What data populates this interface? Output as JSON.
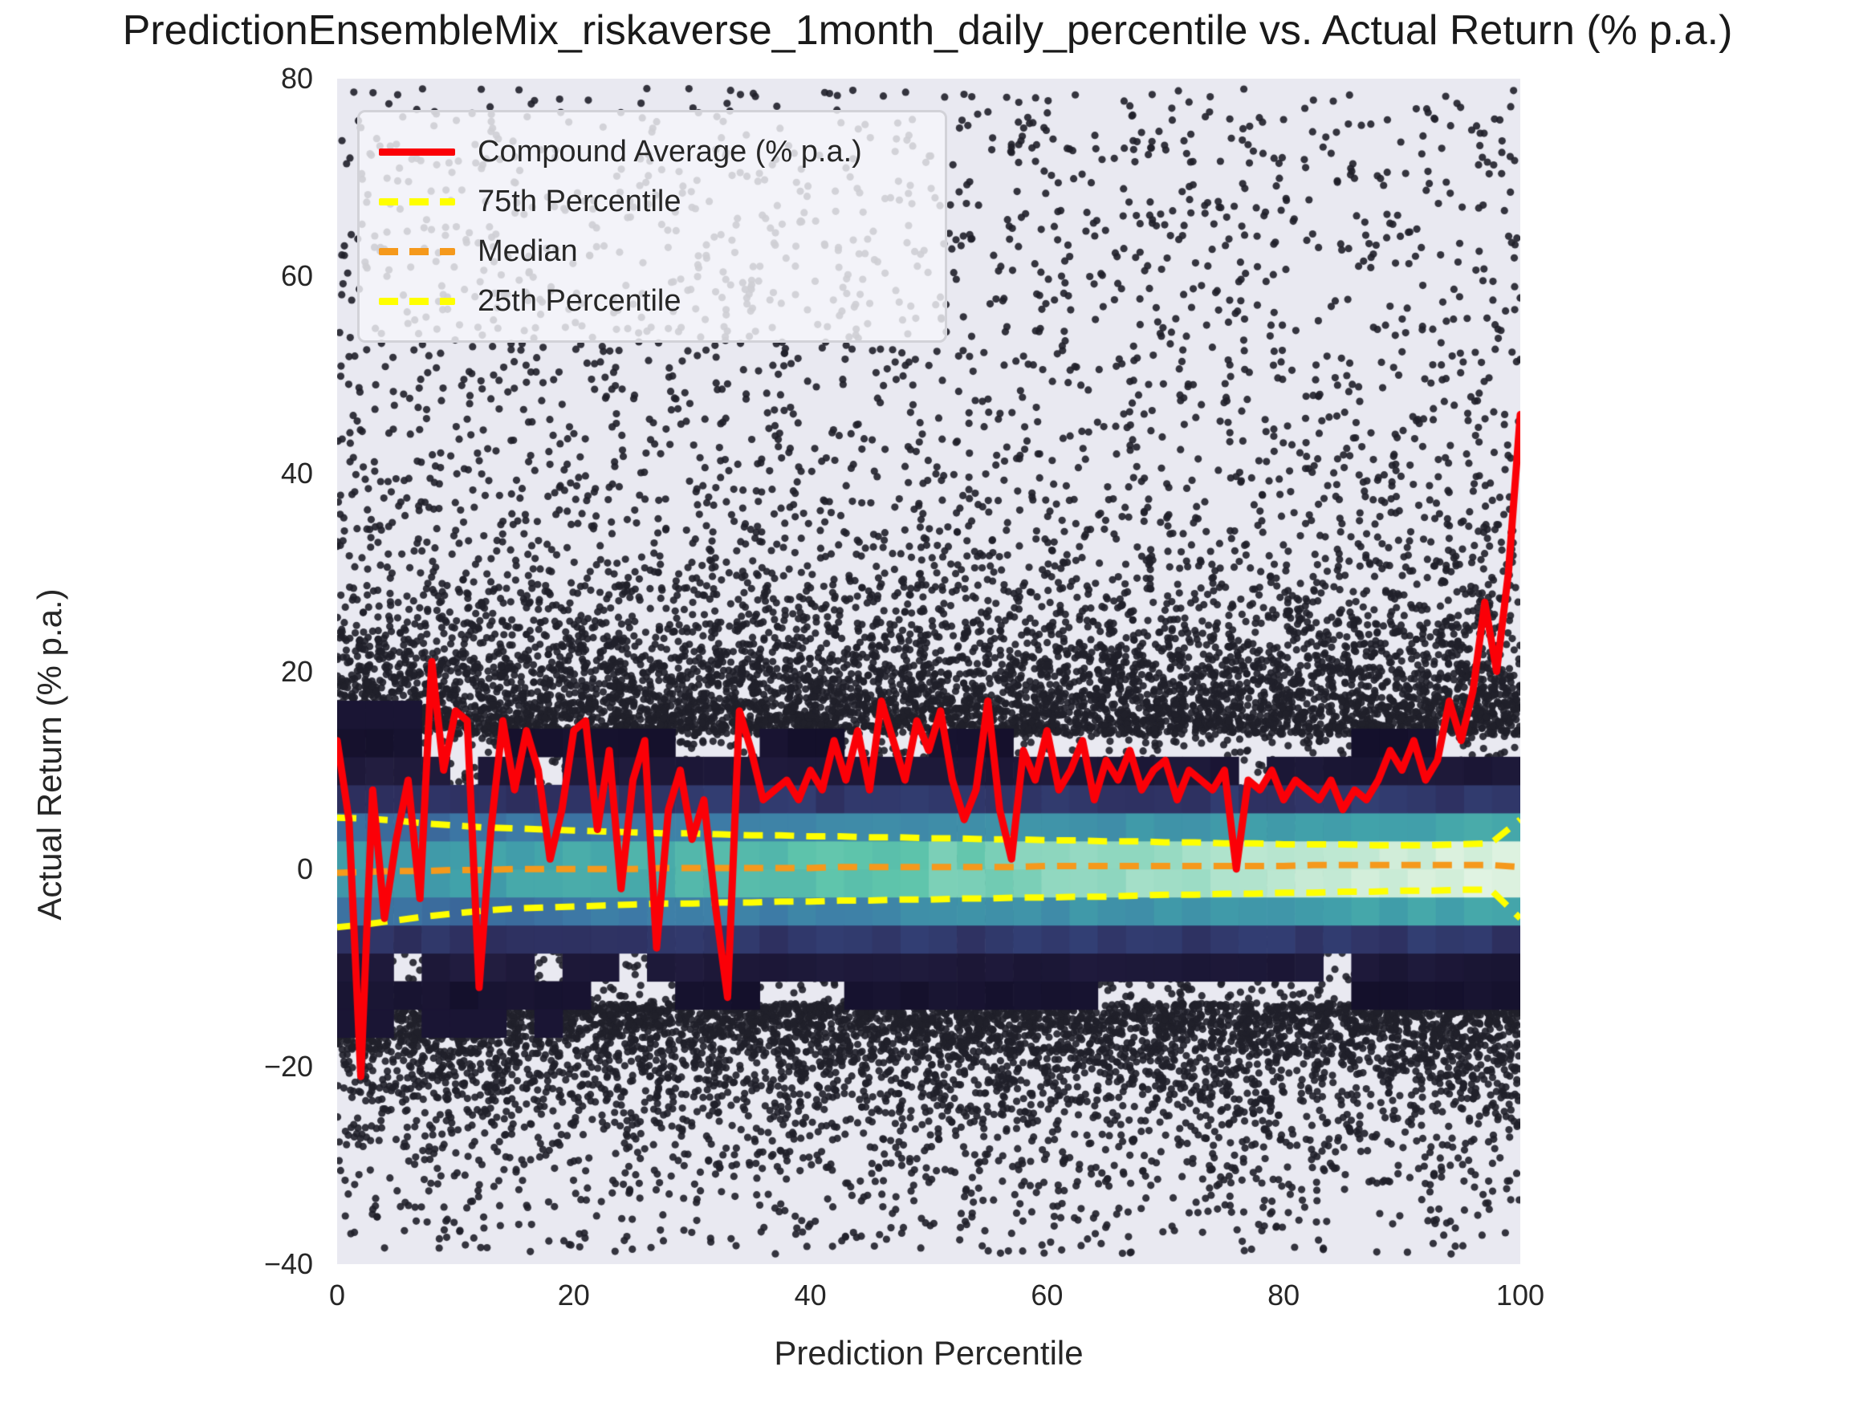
{
  "title": "PredictionEnsembleMix_riskaverse_1month_daily_percentile vs. Actual Return (% p.a.)",
  "axes": {
    "x": {
      "label": "Prediction Percentile",
      "lim": [
        0,
        100
      ],
      "ticks": [
        {
          "value": 0,
          "label": "0"
        },
        {
          "value": 20,
          "label": "20"
        },
        {
          "value": 40,
          "label": "40"
        },
        {
          "value": 60,
          "label": "60"
        },
        {
          "value": 80,
          "label": "80"
        },
        {
          "value": 100,
          "label": "100"
        }
      ]
    },
    "y": {
      "label": "Actual Return (% p.a.)",
      "lim": [
        -40,
        80
      ],
      "ticks": [
        {
          "value": 80,
          "label": "80"
        },
        {
          "value": 60,
          "label": "60"
        },
        {
          "value": 40,
          "label": "40"
        },
        {
          "value": 20,
          "label": "20"
        },
        {
          "value": 0,
          "label": "0"
        },
        {
          "value": -20,
          "label": "−20"
        },
        {
          "value": -40,
          "label": "−40"
        }
      ]
    }
  },
  "legend": {
    "items": [
      {
        "label": "Compound Average (% p.a.)",
        "color": "#fb0007",
        "dashed": false
      },
      {
        "label": "75th Percentile",
        "color": "#ffff00",
        "dashed": true
      },
      {
        "label": "Median",
        "color": "#f5991c",
        "dashed": true
      },
      {
        "label": "25th Percentile",
        "color": "#ffff00",
        "dashed": true
      }
    ]
  },
  "colors": {
    "page_bg": "#ffffff",
    "plot_bg": "#e9e9f1",
    "dot": "#20202a",
    "red_line": "#fb0007",
    "yellow_line": "#ffff00",
    "orange_line": "#f5991c",
    "text": "#262626"
  },
  "chart_data": {
    "type": "composite",
    "subtypes": [
      "scatter",
      "heatmap",
      "line"
    ],
    "title": "PredictionEnsembleMix_riskaverse_1month_daily_percentile vs. Actual Return (% p.a.)",
    "xlabel": "Prediction Percentile",
    "ylabel": "Actual Return (% p.a.)",
    "xlim": [
      0,
      100
    ],
    "ylim": [
      -40,
      80
    ],
    "grid": false,
    "legend_position": "upper left",
    "series": [
      {
        "name": "Compound Average (% p.a.)",
        "type": "line",
        "color": "#fb0007",
        "width": 9,
        "x_start": 0,
        "x_step": 1,
        "values": [
          13,
          5,
          -21,
          8,
          -5,
          3,
          9,
          -3,
          21,
          10,
          16,
          15,
          -12,
          4,
          15,
          8,
          14,
          10,
          1,
          6,
          14,
          15,
          4,
          12,
          -2,
          9,
          13,
          -8,
          6,
          10,
          3,
          7,
          -4,
          -13,
          16,
          12,
          7,
          8,
          9,
          7,
          10,
          8,
          13,
          9,
          14,
          8,
          17,
          13,
          9,
          15,
          12,
          16,
          9,
          5,
          8,
          17,
          6,
          1,
          12,
          9,
          14,
          8,
          10,
          13,
          7,
          11,
          9,
          12,
          8,
          10,
          11,
          7,
          10,
          9,
          8,
          10,
          0,
          9,
          8,
          10,
          7,
          9,
          8,
          7,
          9,
          6,
          8,
          7,
          9,
          12,
          10,
          13,
          9,
          11,
          17,
          13,
          18,
          27,
          20,
          30,
          46
        ]
      },
      {
        "name": "75th Percentile",
        "type": "dashed-line",
        "color": "#ffff00",
        "width": 8,
        "x_start": 0,
        "x_step": 2.5,
        "values": [
          5.2,
          5.1,
          4.9,
          4.6,
          4.4,
          4.2,
          4.1,
          4.0,
          3.9,
          3.8,
          3.7,
          3.6,
          3.6,
          3.5,
          3.4,
          3.4,
          3.3,
          3.3,
          3.2,
          3.2,
          3.1,
          3.1,
          3.0,
          3.0,
          2.9,
          2.9,
          2.8,
          2.8,
          2.7,
          2.7,
          2.6,
          2.6,
          2.5,
          2.5,
          2.5,
          2.4,
          2.4,
          2.4,
          2.5,
          2.6,
          5.0
        ]
      },
      {
        "name": "Median",
        "type": "dashed-line",
        "color": "#f5991c",
        "width": 8,
        "x_start": 0,
        "x_step": 2.5,
        "values": [
          -0.4,
          -0.3,
          -0.2,
          -0.2,
          -0.1,
          -0.1,
          0,
          0,
          0,
          0,
          0,
          0.1,
          0.1,
          0.1,
          0.1,
          0.1,
          0.1,
          0.2,
          0.2,
          0.2,
          0.2,
          0.2,
          0.2,
          0.2,
          0.3,
          0.3,
          0.3,
          0.3,
          0.3,
          0.3,
          0.3,
          0.3,
          0.3,
          0.4,
          0.4,
          0.4,
          0.4,
          0.4,
          0.4,
          0.4,
          0.2
        ]
      },
      {
        "name": "25th Percentile",
        "type": "dashed-line",
        "color": "#ffff00",
        "width": 8,
        "x_start": 0,
        "x_step": 2.5,
        "values": [
          -5.9,
          -5.6,
          -5.2,
          -4.8,
          -4.5,
          -4.2,
          -4.0,
          -3.9,
          -3.8,
          -3.7,
          -3.6,
          -3.5,
          -3.5,
          -3.4,
          -3.4,
          -3.3,
          -3.3,
          -3.2,
          -3.2,
          -3.1,
          -3.1,
          -3.0,
          -3.0,
          -2.9,
          -2.9,
          -2.8,
          -2.8,
          -2.7,
          -2.6,
          -2.6,
          -2.5,
          -2.5,
          -2.4,
          -2.4,
          -2.3,
          -2.3,
          -2.2,
          -2.2,
          -2.1,
          -2.1,
          -5.0
        ]
      }
    ],
    "scatter": {
      "description": "dense cloud of individual return observations, near-solid just outside the central density band, thinning toward +80 and -40",
      "count": 17000,
      "color": "#20202a",
      "radius": 4.6,
      "alpha": 0.9,
      "seed": 1234,
      "shell_start": 13.6,
      "shell_scale_up": 6.2,
      "shell_scale_down": 5.2,
      "center_sigma": 8.5,
      "y_clip": [
        -39.2,
        79.4
      ]
    },
    "heatmap": {
      "description": "2D histogram density band centered on 0% return; density (lightness) of the core increases from left to right",
      "x_range": [
        0,
        100
      ],
      "y_range": [
        -14.2,
        14.2
      ],
      "cols": 42,
      "rows": 10,
      "amp_base": 0.56,
      "amp_gain": 0.44,
      "sigma_left": 5.3,
      "sigma_slope": 1.1,
      "colormap": "mako-like (dark navy → blue → teal → pale mint)",
      "colormap_stops": [
        [
          0.0,
          "#14102b"
        ],
        [
          0.12,
          "#221d40"
        ],
        [
          0.22,
          "#2e3060"
        ],
        [
          0.33,
          "#37508a"
        ],
        [
          0.45,
          "#3d7aa6"
        ],
        [
          0.58,
          "#41a2aa"
        ],
        [
          0.7,
          "#5ec4ab"
        ],
        [
          0.82,
          "#a9e1ca"
        ],
        [
          0.92,
          "#d9f0dc"
        ],
        [
          1.0,
          "#eaf7ea"
        ]
      ]
    }
  }
}
